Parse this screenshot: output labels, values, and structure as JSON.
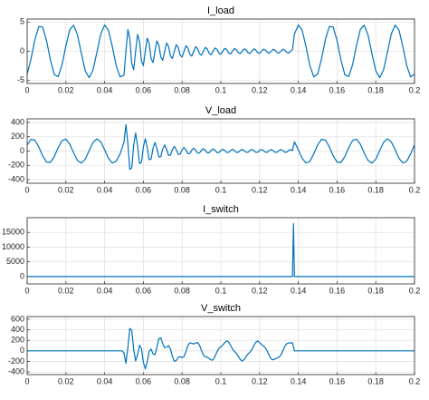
{
  "chart_data": [
    {
      "type": "line",
      "title": "I_load",
      "color": "#0072bd",
      "grid": true,
      "xlim": [
        0,
        0.2
      ],
      "xticks": [
        0,
        0.02,
        0.04,
        0.06,
        0.08,
        0.1,
        0.12,
        0.14,
        0.16,
        0.18,
        0.2
      ],
      "ylim": [
        -5.5,
        5.5
      ],
      "yticks": [
        -5,
        0,
        5
      ],
      "x": [
        0,
        0.002,
        0.004,
        0.006,
        0.008,
        0.01,
        0.012,
        0.014,
        0.016,
        0.018,
        0.02,
        0.022,
        0.024,
        0.026,
        0.028,
        0.03,
        0.032,
        0.034,
        0.036,
        0.038,
        0.04,
        0.042,
        0.044,
        0.046,
        0.048,
        0.05,
        0.051,
        0.052,
        0.053,
        0.054,
        0.055,
        0.056,
        0.057,
        0.058,
        0.059,
        0.06,
        0.061,
        0.062,
        0.063,
        0.064,
        0.065,
        0.066,
        0.067,
        0.068,
        0.069,
        0.07,
        0.071,
        0.072,
        0.073,
        0.074,
        0.075,
        0.076,
        0.077,
        0.078,
        0.079,
        0.08,
        0.081,
        0.082,
        0.083,
        0.084,
        0.085,
        0.086,
        0.087,
        0.088,
        0.089,
        0.09,
        0.091,
        0.092,
        0.093,
        0.094,
        0.095,
        0.096,
        0.097,
        0.098,
        0.099,
        0.1,
        0.101,
        0.102,
        0.103,
        0.104,
        0.105,
        0.106,
        0.107,
        0.108,
        0.109,
        0.11,
        0.111,
        0.112,
        0.113,
        0.114,
        0.115,
        0.116,
        0.117,
        0.118,
        0.119,
        0.12,
        0.121,
        0.122,
        0.123,
        0.124,
        0.125,
        0.126,
        0.127,
        0.128,
        0.129,
        0.13,
        0.131,
        0.132,
        0.133,
        0.134,
        0.135,
        0.136,
        0.137,
        0.138,
        0.14,
        0.142,
        0.144,
        0.146,
        0.148,
        0.15,
        0.152,
        0.154,
        0.156,
        0.158,
        0.16,
        0.162,
        0.164,
        0.166,
        0.168,
        0.17,
        0.172,
        0.174,
        0.176,
        0.178,
        0.18,
        0.182,
        0.184,
        0.186,
        0.188,
        0.19,
        0.192,
        0.194,
        0.196,
        0.198,
        0.2
      ],
      "values": [
        -3.9,
        -1.3,
        2,
        4.22,
        4.15,
        1.83,
        -1.48,
        -3.99,
        -4.33,
        -2.33,
        0.94,
        3.69,
        4.45,
        2.79,
        -0.38,
        -3.34,
        -4.5,
        -3.21,
        -0.19,
        2.94,
        4.48,
        3.59,
        0.75,
        -2.49,
        -4.38,
        -4.09,
        0,
        3.69,
        2.17,
        -2.06,
        -3.17,
        0,
        2.86,
        1.68,
        -1.61,
        -2.47,
        0,
        2.23,
        1.32,
        -1.26,
        -1.94,
        0,
        1.77,
        1.04,
        -0.99,
        -1.54,
        0,
        1.41,
        0.83,
        -0.8,
        -1.24,
        0,
        1.13,
        0.67,
        -0.65,
        -1.01,
        0,
        0.93,
        0.55,
        -0.53,
        -0.83,
        0,
        0.77,
        0.46,
        -0.45,
        -0.69,
        0,
        0.66,
        0.39,
        -0.38,
        -0.6,
        0,
        0.57,
        0.34,
        -0.34,
        -0.52,
        0,
        0.5,
        0.31,
        -0.3,
        -0.48,
        0,
        0.46,
        0.28,
        -0.27,
        -0.42,
        0,
        0.41,
        0.25,
        -0.25,
        -0.39,
        0,
        0.39,
        0.24,
        -0.24,
        -0.36,
        0,
        0.35,
        0.21,
        -0.21,
        -0.34,
        0,
        0.34,
        0.2,
        -0.2,
        -0.33,
        0,
        0.33,
        0.2,
        -0.2,
        -0.32,
        0,
        0.32,
        2.94,
        4.48,
        3.59,
        0.75,
        -2.49,
        -4.38,
        -3.9,
        -1.3,
        2,
        4.22,
        4.15,
        1.83,
        -1.48,
        -3.99,
        -4.33,
        -2.33,
        0.94,
        3.69,
        4.45,
        2.79,
        -0.38,
        -3.34,
        -4.5,
        -3.21,
        -0.19,
        2.94,
        4.48,
        3.59,
        0.75,
        -2.49,
        -4.38,
        -3.9
      ]
    },
    {
      "type": "line",
      "title": "V_load",
      "color": "#0072bd",
      "grid": true,
      "xlim": [
        0,
        0.2
      ],
      "xticks": [
        0,
        0.02,
        0.04,
        0.06,
        0.08,
        0.1,
        0.12,
        0.14,
        0.16,
        0.18,
        0.2
      ],
      "ylim": [
        -450,
        450
      ],
      "yticks": [
        -400,
        -200,
        0,
        200,
        400
      ],
      "x": [
        0,
        0.002,
        0.004,
        0.006,
        0.008,
        0.01,
        0.012,
        0.014,
        0.016,
        0.018,
        0.02,
        0.022,
        0.024,
        0.026,
        0.028,
        0.03,
        0.032,
        0.034,
        0.036,
        0.038,
        0.04,
        0.042,
        0.044,
        0.046,
        0.048,
        0.05,
        0.051,
        0.052,
        0.053,
        0.054,
        0.055,
        0.056,
        0.057,
        0.058,
        0.059,
        0.06,
        0.061,
        0.062,
        0.063,
        0.064,
        0.065,
        0.066,
        0.067,
        0.068,
        0.069,
        0.07,
        0.071,
        0.072,
        0.073,
        0.074,
        0.075,
        0.076,
        0.077,
        0.078,
        0.079,
        0.08,
        0.081,
        0.082,
        0.083,
        0.084,
        0.085,
        0.086,
        0.087,
        0.088,
        0.089,
        0.09,
        0.091,
        0.092,
        0.093,
        0.094,
        0.095,
        0.096,
        0.097,
        0.098,
        0.099,
        0.1,
        0.101,
        0.102,
        0.103,
        0.104,
        0.105,
        0.106,
        0.107,
        0.108,
        0.109,
        0.11,
        0.111,
        0.112,
        0.113,
        0.114,
        0.115,
        0.116,
        0.117,
        0.118,
        0.119,
        0.12,
        0.121,
        0.122,
        0.123,
        0.124,
        0.125,
        0.126,
        0.127,
        0.128,
        0.129,
        0.13,
        0.131,
        0.132,
        0.133,
        0.134,
        0.135,
        0.136,
        0.137,
        0.138,
        0.14,
        0.142,
        0.144,
        0.146,
        0.148,
        0.15,
        0.152,
        0.154,
        0.156,
        0.158,
        0.16,
        0.162,
        0.164,
        0.166,
        0.168,
        0.17,
        0.172,
        0.174,
        0.176,
        0.178,
        0.18,
        0.182,
        0.184,
        0.186,
        0.188,
        0.19,
        0.192,
        0.194,
        0.196,
        0.198,
        0.2
      ],
      "values": [
        85,
        163,
        152,
        59,
        -66,
        -155,
        -160,
        -79,
        46,
        145,
        166,
        97,
        -25,
        -133,
        -169,
        -114,
        4,
        119,
        170,
        129,
        18,
        -103,
        -168,
        -142,
        -39,
        124,
        370,
        106,
        -256,
        -236,
        83,
        251,
        72,
        -174,
        -161,
        57,
        172,
        49,
        -121,
        -112,
        40,
        120,
        35,
        -85,
        -79,
        28,
        86,
        25,
        -61,
        -57,
        21,
        64,
        19,
        -46,
        -44,
        16,
        49,
        14,
        -36,
        -34,
        13,
        39,
        11,
        -29,
        -28,
        11,
        33,
        10,
        -25,
        -24,
        9,
        28,
        9,
        -22,
        -21,
        8,
        25,
        8,
        -20,
        -19,
        7,
        24,
        7,
        -19,
        -19,
        7,
        22,
        7,
        -18,
        -18,
        7,
        22,
        7,
        -18,
        -17,
        6,
        21,
        6,
        -17,
        -17,
        6,
        21,
        6,
        -17,
        -17,
        6,
        20,
        6,
        -16,
        -16,
        6,
        20,
        6,
        129,
        18,
        -103,
        -168,
        -142,
        -39,
        85,
        163,
        152,
        59,
        -66,
        -155,
        -160,
        -79,
        46,
        145,
        166,
        97,
        -25,
        -133,
        -169,
        -114,
        4,
        119,
        170,
        129,
        18,
        -103,
        -168,
        -142,
        -39,
        85
      ]
    },
    {
      "type": "line",
      "title": "I_switch",
      "color": "#0072bd",
      "grid": true,
      "xlim": [
        0,
        0.2
      ],
      "xticks": [
        0,
        0.02,
        0.04,
        0.06,
        0.08,
        0.1,
        0.12,
        0.14,
        0.16,
        0.18,
        0.2
      ],
      "ylim": [
        -2500,
        20000
      ],
      "yticks": [
        0,
        5000,
        10000,
        15000
      ],
      "x": [
        0,
        0.137,
        0.1375,
        0.138,
        0.2
      ],
      "values": [
        0,
        0,
        18000,
        0,
        0
      ]
    },
    {
      "type": "line",
      "title": "V_switch",
      "color": "#0072bd",
      "grid": true,
      "xlim": [
        0,
        0.2
      ],
      "xticks": [
        0,
        0.02,
        0.04,
        0.06,
        0.08,
        0.1,
        0.12,
        0.14,
        0.16,
        0.18,
        0.2
      ],
      "ylim": [
        -450,
        650
      ],
      "yticks": [
        -400,
        -200,
        0,
        200,
        400,
        600
      ],
      "x": [
        0,
        0.049,
        0.05,
        0.051,
        0.052,
        0.053,
        0.054,
        0.055,
        0.056,
        0.057,
        0.058,
        0.059,
        0.06,
        0.061,
        0.062,
        0.063,
        0.064,
        0.065,
        0.066,
        0.067,
        0.068,
        0.069,
        0.07,
        0.071,
        0.072,
        0.073,
        0.074,
        0.075,
        0.076,
        0.077,
        0.078,
        0.079,
        0.08,
        0.081,
        0.082,
        0.083,
        0.084,
        0.085,
        0.086,
        0.087,
        0.088,
        0.089,
        0.09,
        0.091,
        0.092,
        0.093,
        0.094,
        0.095,
        0.096,
        0.097,
        0.098,
        0.099,
        0.1,
        0.101,
        0.102,
        0.103,
        0.104,
        0.105,
        0.106,
        0.107,
        0.108,
        0.109,
        0.11,
        0.111,
        0.112,
        0.113,
        0.114,
        0.115,
        0.116,
        0.117,
        0.118,
        0.119,
        0.12,
        0.121,
        0.122,
        0.123,
        0.124,
        0.125,
        0.126,
        0.127,
        0.128,
        0.129,
        0.13,
        0.131,
        0.132,
        0.133,
        0.134,
        0.135,
        0.136,
        0.137,
        0.138,
        0.2
      ],
      "values": [
        0,
        0,
        -39,
        -237,
        57,
        425,
        388,
        31,
        -192,
        -76,
        108,
        42,
        -212,
        -342,
        -209,
        -8,
        33,
        -58,
        -74,
        68,
        230,
        247,
        138,
        56,
        72,
        100,
        32,
        -106,
        -197,
        -182,
        -123,
        -108,
        -130,
        -108,
        -10,
        102,
        153,
        142,
        131,
        149,
        158,
        107,
        7,
        -79,
        -113,
        -120,
        -144,
        -175,
        -170,
        -106,
        -17,
        46,
        77,
        108,
        155,
        189,
        171,
        107,
        35,
        -11,
        -47,
        -100,
        -162,
        -192,
        -167,
        -111,
        -61,
        -25,
        24,
        96,
        163,
        185,
        160,
        121,
        91,
        56,
        -8,
        -91,
        -154,
        -169,
        -152,
        -135,
        -120,
        -79,
        -2,
        82,
        135,
        149,
        150,
        154,
        0,
        0
      ]
    }
  ]
}
